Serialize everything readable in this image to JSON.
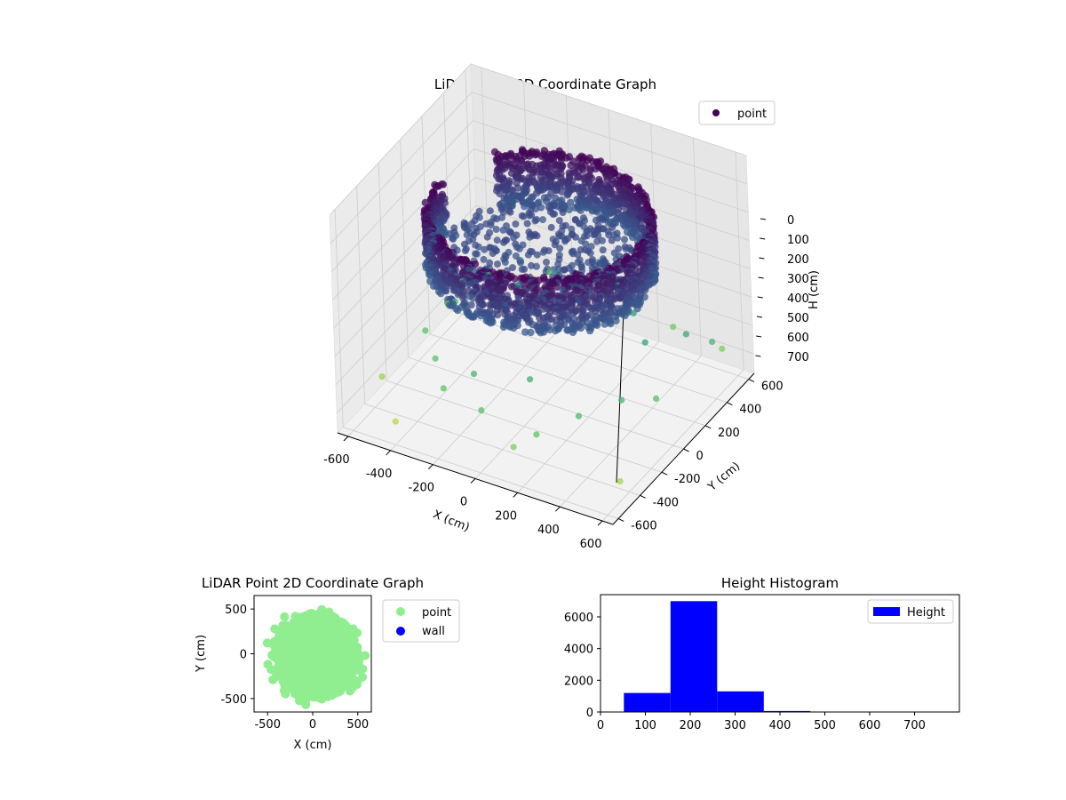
{
  "chart_data": [
    {
      "type": "scatter",
      "projection": "3d",
      "title": "LiDAR Point 3D Coordinate Graph",
      "xlabel": "X (cm)",
      "ylabel": "Y (cm)",
      "zlabel": "H (cm)",
      "xlim": [
        -650,
        650
      ],
      "ylim": [
        -650,
        650
      ],
      "zlim": [
        770,
        0
      ],
      "z_axis_inverted": true,
      "colormap": "viridis",
      "x_ticks": [
        "-600",
        "-400",
        "-200",
        "0",
        "200",
        "400",
        "600"
      ],
      "y_ticks": [
        "-600",
        "-400",
        "-200",
        "0",
        "200",
        "400",
        "600"
      ],
      "z_ticks": [
        "0",
        "100",
        "200",
        "300",
        "400",
        "500",
        "600",
        "700"
      ],
      "legend": {
        "position": "upper right",
        "entries": [
          {
            "label": "point",
            "color": "#440154"
          }
        ]
      },
      "description_series": {
        "wall": {
          "shape": "ring",
          "radius": 480,
          "h_range": [
            100,
            300
          ],
          "gap_angle_deg": [
            140,
            175
          ]
        },
        "floor": {
          "shape": "disk",
          "radius": 420,
          "h": 250
        },
        "scattered_points": [
          [
            -560,
            200,
            640
          ],
          [
            -520,
            -80,
            610
          ],
          [
            -480,
            120,
            580
          ],
          [
            -430,
            330,
            560
          ],
          [
            -380,
            -260,
            600
          ],
          [
            -320,
            420,
            520
          ],
          [
            -260,
            -420,
            610
          ],
          [
            -210,
            180,
            480
          ],
          [
            -150,
            -350,
            560
          ],
          [
            -100,
            330,
            470
          ],
          [
            -40,
            -500,
            600
          ],
          [
            20,
            470,
            460
          ],
          [
            90,
            -300,
            540
          ],
          [
            160,
            380,
            470
          ],
          [
            230,
            -520,
            610
          ],
          [
            300,
            250,
            480
          ],
          [
            360,
            -380,
            570
          ],
          [
            420,
            120,
            500
          ],
          [
            470,
            -200,
            560
          ],
          [
            520,
            300,
            520
          ],
          [
            560,
            -60,
            590
          ],
          [
            600,
            380,
            560
          ],
          [
            -600,
            -330,
            690
          ],
          [
            -620,
            450,
            680
          ],
          [
            -430,
            -540,
            720
          ],
          [
            330,
            540,
            640
          ],
          [
            600,
            -480,
            700
          ],
          [
            -250,
            540,
            590
          ],
          [
            140,
            -560,
            660
          ],
          [
            560,
            540,
            660
          ]
        ]
      }
    },
    {
      "type": "scatter",
      "title": "LiDAR Point 2D Coordinate Graph",
      "xlabel": "X (cm)",
      "ylabel": "Y (cm)",
      "xlim": [
        -650,
        650
      ],
      "ylim": [
        -650,
        650
      ],
      "x_ticks": [
        "-500",
        "0",
        "500"
      ],
      "y_ticks": [
        "500",
        "0",
        "-500"
      ],
      "legend": {
        "position": "outside right",
        "entries": [
          {
            "label": "point",
            "color": "#90ee90"
          },
          {
            "label": "wall",
            "color": "#0000ff"
          }
        ]
      },
      "point_cloud": {
        "shape": "disk",
        "center": [
          40,
          -20
        ],
        "radius": 480,
        "color": "#90ee90"
      }
    },
    {
      "type": "bar",
      "subtype": "histogram",
      "title": "Height Histogram",
      "xlim": [
        0,
        800
      ],
      "ylim": [
        0,
        7400
      ],
      "x_ticks": [
        "0",
        "100",
        "200",
        "300",
        "400",
        "500",
        "600",
        "700"
      ],
      "y_ticks": [
        "0",
        "2000",
        "4000",
        "6000"
      ],
      "color": "#0000ff",
      "legend": {
        "position": "upper right",
        "entries": [
          {
            "label": "Height",
            "color": "#0000ff"
          }
        ]
      },
      "bins": [
        {
          "x0": 52,
          "x1": 156,
          "count": 1200
        },
        {
          "x0": 156,
          "x1": 260,
          "count": 6990
        },
        {
          "x0": 260,
          "x1": 364,
          "count": 1300
        },
        {
          "x0": 364,
          "x1": 468,
          "count": 60
        },
        {
          "x0": 468,
          "x1": 572,
          "count": 10
        },
        {
          "x0": 572,
          "x1": 676,
          "count": 5
        },
        {
          "x0": 676,
          "x1": 780,
          "count": 3
        }
      ]
    }
  ]
}
